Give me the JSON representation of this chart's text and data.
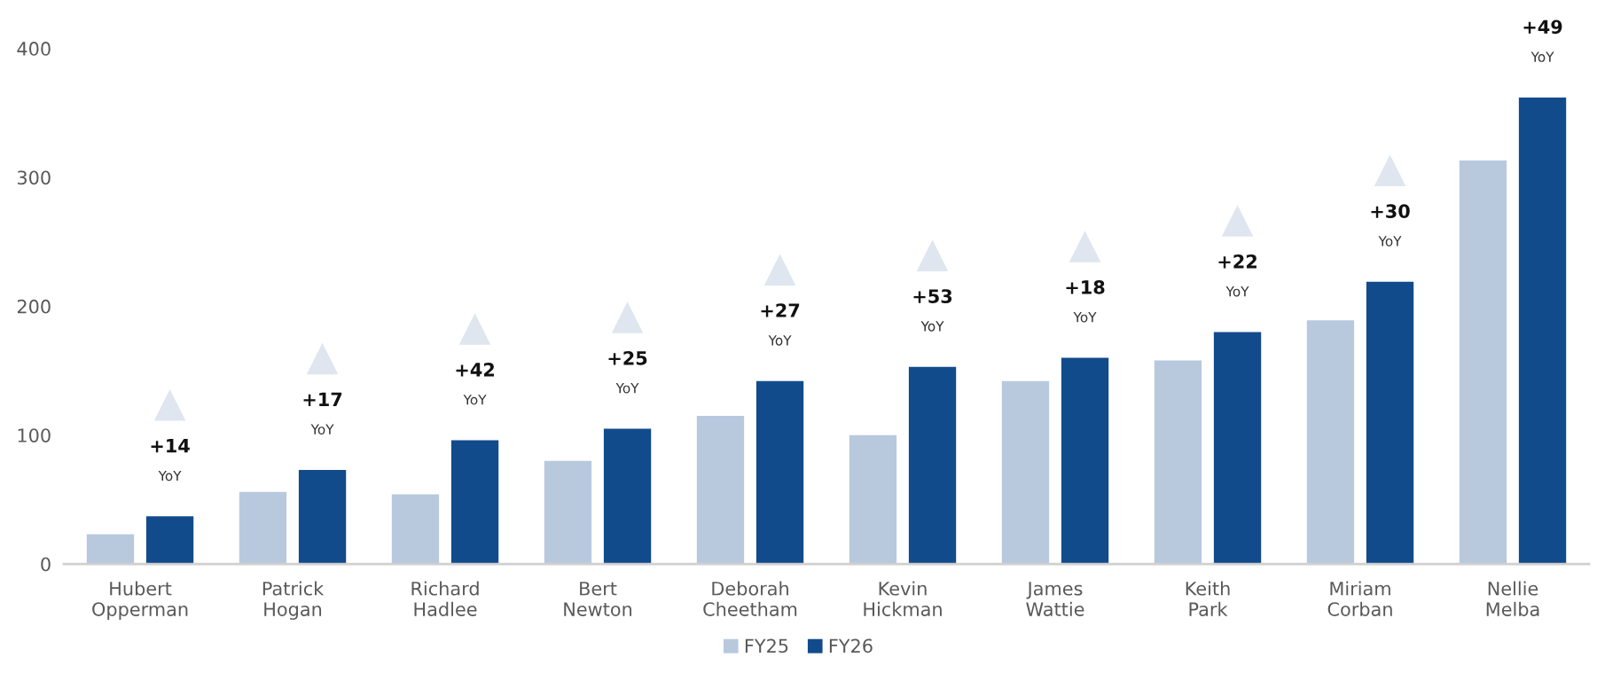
{
  "chart_data": {
    "type": "bar",
    "categories": [
      "Hubert Opperman",
      "Patrick Hogan",
      "Richard Hadlee",
      "Bert Newton",
      "Deborah Cheetham",
      "Kevin Hickman",
      "James Wattie",
      "Keith Park",
      "Miriam Corban",
      "Nellie Melba"
    ],
    "series": [
      {
        "name": "FY25",
        "color": "#b8c9de",
        "values": [
          23,
          56,
          54,
          80,
          115,
          100,
          142,
          158,
          189,
          313
        ]
      },
      {
        "name": "FY26",
        "color": "#124b8c",
        "values": [
          37,
          73,
          96,
          105,
          142,
          153,
          160,
          180,
          219,
          362
        ]
      }
    ],
    "ylim": [
      0,
      400
    ],
    "yticks": [
      0,
      100,
      200,
      300,
      400
    ],
    "grid": false,
    "legend": "bottom",
    "annotations": [
      "+14\nYoY",
      "+17\nYoY",
      "+42\nYoY",
      "+25\nYoY",
      "+27\nYoY",
      "+53\nYoY",
      "+18\nYoY",
      "+22\nYoY",
      "+30\nYoY",
      "+49\nYoY"
    ]
  }
}
